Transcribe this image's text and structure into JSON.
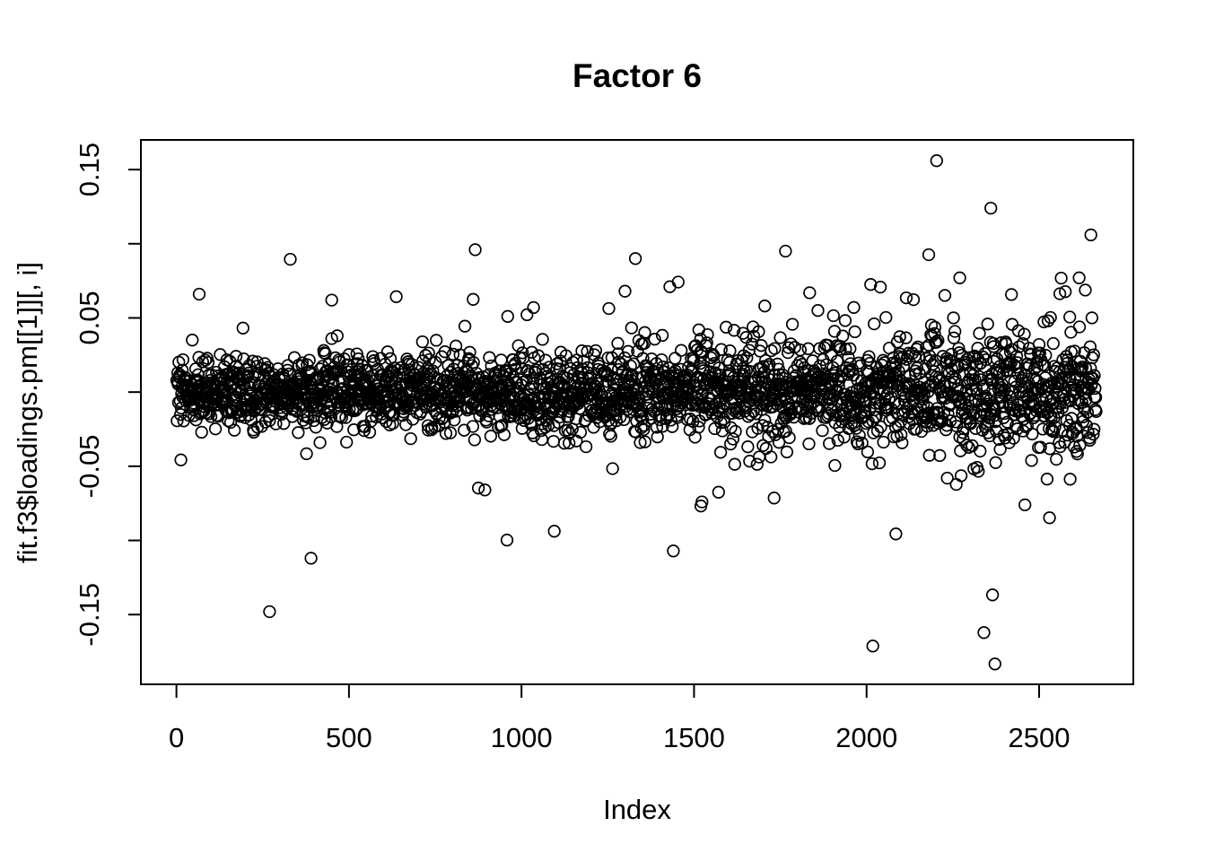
{
  "figure": {
    "background": "#ffffff",
    "foreground": "#000000"
  },
  "chart_data": {
    "type": "scatter",
    "title": "Factor 6",
    "xlabel": "Index",
    "ylabel": "fit.f3$loadings.pm[[1]][, i]",
    "legend": "none",
    "grid": "off",
    "xlim": [
      -103,
      2773
    ],
    "ylim": [
      -0.197,
      0.17
    ],
    "x_axis": {
      "ticks": [
        {
          "value": 0,
          "label": "0"
        },
        {
          "value": 500,
          "label": "500"
        },
        {
          "value": 1000,
          "label": "1000"
        },
        {
          "value": 1500,
          "label": "1500"
        },
        {
          "value": 2000,
          "label": "2000"
        },
        {
          "value": 2500,
          "label": "2500"
        }
      ]
    },
    "y_axis": {
      "ticks": [
        {
          "value": 0.15,
          "label": "0.15"
        },
        {
          "value": 0.1,
          "label": ""
        },
        {
          "value": 0.05,
          "label": "0.05"
        },
        {
          "value": 0.0,
          "label": ""
        },
        {
          "value": -0.05,
          "label": "-0.05"
        },
        {
          "value": -0.1,
          "label": ""
        },
        {
          "value": -0.15,
          "label": "-0.15"
        }
      ]
    },
    "marker": {
      "shape": "open-circle",
      "color": "#000000"
    },
    "point_cloud": {
      "description": "Dense band of posterior-mean factor loadings centered on 0; spread widens slightly from left (about +/-0.03) to right (about +/-0.05); approximate observed extremes 0.156 and -0.183.",
      "n": 2665,
      "seed": 42,
      "mean": 0,
      "sd_start": 0.0105,
      "sd_end": 0.018,
      "tail1_prob_start": 0.05,
      "tail1_prob_end": 0.18,
      "tail1_mult": 1.9,
      "tail2_prob_start": 0.004,
      "tail2_prob_end": 0.018,
      "tail2_mult": 3.0,
      "clamp_abs": 0.078
    },
    "outliers": [
      [
        66,
        0.066
      ],
      [
        330,
        0.0895
      ],
      [
        450,
        0.062
      ],
      [
        866,
        0.096
      ],
      [
        960,
        0.051
      ],
      [
        1035,
        0.057
      ],
      [
        1300,
        0.068
      ],
      [
        1330,
        0.09
      ],
      [
        1430,
        0.071
      ],
      [
        1705,
        0.058
      ],
      [
        1765,
        0.095
      ],
      [
        1835,
        0.067
      ],
      [
        2115,
        0.0635
      ],
      [
        2180,
        0.0926
      ],
      [
        2203,
        0.156
      ],
      [
        2270,
        0.077
      ],
      [
        2360,
        0.124
      ],
      [
        2650,
        0.106
      ],
      [
        270,
        -0.148
      ],
      [
        390,
        -0.112
      ],
      [
        875,
        -0.0647
      ],
      [
        958,
        -0.0998
      ],
      [
        1095,
        -0.0938
      ],
      [
        1440,
        -0.1071
      ],
      [
        1520,
        -0.0768
      ],
      [
        1523,
        -0.074
      ],
      [
        2018,
        -0.1712
      ],
      [
        2085,
        -0.0956
      ],
      [
        2340,
        -0.1621
      ],
      [
        2365,
        -0.1367
      ],
      [
        2372,
        -0.1833
      ],
      [
        2530,
        -0.0847
      ],
      [
        2590,
        -0.0587
      ]
    ]
  }
}
